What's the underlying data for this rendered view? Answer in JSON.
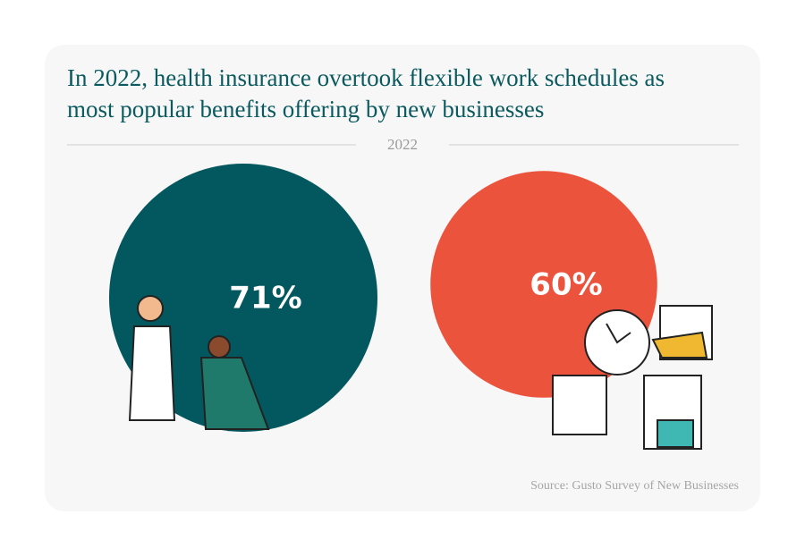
{
  "chart_data": {
    "type": "bubble",
    "title": "In 2022, health insurance overtook flexible work schedules as most popular benefits offering by new businesses",
    "subtitle": "2022",
    "source": "Source: Gusto Survey of New Businesses",
    "values": [
      71,
      60
    ],
    "value_labels": [
      "71%",
      "60%"
    ],
    "colors": [
      "#03585f",
      "#ec533d"
    ]
  }
}
